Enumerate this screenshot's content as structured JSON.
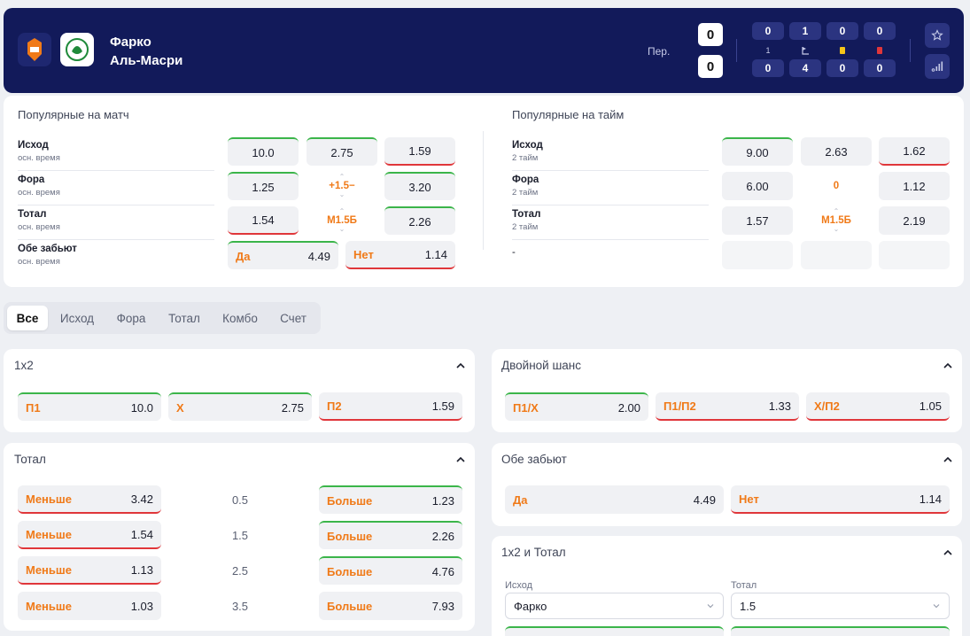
{
  "header": {
    "team_home": "Фарко",
    "team_away": "Аль-Масри",
    "period_label": "Пер.",
    "score_home": "0",
    "score_away": "0",
    "stats_home": [
      "0",
      "1",
      "0",
      "0"
    ],
    "stats_away": [
      "0",
      "4",
      "0",
      "0"
    ],
    "stat_labels": [
      "1",
      "corner-icon",
      "yellow-card-icon",
      "red-card-icon"
    ],
    "colors": {
      "bg": "#121a5a",
      "yellow": "#f5c518",
      "red": "#e0363a"
    }
  },
  "popular_match": {
    "title": "Популярные на матч",
    "rows": [
      {
        "label": "Исход",
        "sub": "осн. время",
        "o1": "10.0",
        "mid": "2.75",
        "o3": "1.59"
      },
      {
        "label": "Фора",
        "sub": "осн. время",
        "o1": "1.25",
        "mid": "+1.5−",
        "o3": "3.20"
      },
      {
        "label": "Тотал",
        "sub": "осн. время",
        "o1": "1.54",
        "mid": "М1.5Б",
        "o3": "2.26"
      },
      {
        "label": "Обе забьют",
        "sub": "осн. время",
        "yes_label": "Да",
        "yes_value": "4.49",
        "no_label": "Нет",
        "no_value": "1.14"
      }
    ]
  },
  "popular_half": {
    "title": "Популярные на тайм",
    "rows": [
      {
        "label": "Исход",
        "sub": "2 тайм",
        "o1": "9.00",
        "mid": "2.63",
        "o3": "1.62"
      },
      {
        "label": "Фора",
        "sub": "2 тайм",
        "o1": "6.00",
        "mid": "0",
        "o3": "1.12"
      },
      {
        "label": "Тотал",
        "sub": "2 тайм",
        "o1": "1.57",
        "mid": "М1.5Б",
        "o3": "2.19"
      },
      {
        "label": "-"
      }
    ]
  },
  "tabs": [
    "Все",
    "Исход",
    "Фора",
    "Тотал",
    "Комбо",
    "Счет"
  ],
  "market_1x2": {
    "title": "1x2",
    "items": [
      {
        "k": "П1",
        "v": "10.0"
      },
      {
        "k": "Х",
        "v": "2.75"
      },
      {
        "k": "П2",
        "v": "1.59"
      }
    ]
  },
  "market_double": {
    "title": "Двойной шанс",
    "items": [
      {
        "k": "П1/Х",
        "v": "2.00"
      },
      {
        "k": "П1/П2",
        "v": "1.33"
      },
      {
        "k": "Х/П2",
        "v": "1.05"
      }
    ]
  },
  "market_total": {
    "title": "Тотал",
    "under_label": "Меньше",
    "over_label": "Больше",
    "rows": [
      {
        "under": "3.42",
        "line": "0.5",
        "over": "1.23"
      },
      {
        "under": "1.54",
        "line": "1.5",
        "over": "2.26"
      },
      {
        "under": "1.13",
        "line": "2.5",
        "over": "4.76"
      },
      {
        "under": "1.03",
        "line": "3.5",
        "over": "7.93"
      }
    ]
  },
  "market_btts": {
    "title": "Обе забьют",
    "items": [
      {
        "k": "Да",
        "v": "4.49"
      },
      {
        "k": "Нет",
        "v": "1.14"
      }
    ]
  },
  "market_combo": {
    "title": "1x2 и Тотал",
    "outcome_label": "Исход",
    "outcome_value": "Фарко",
    "total_label": "Тотал",
    "total_value": "1.5"
  }
}
